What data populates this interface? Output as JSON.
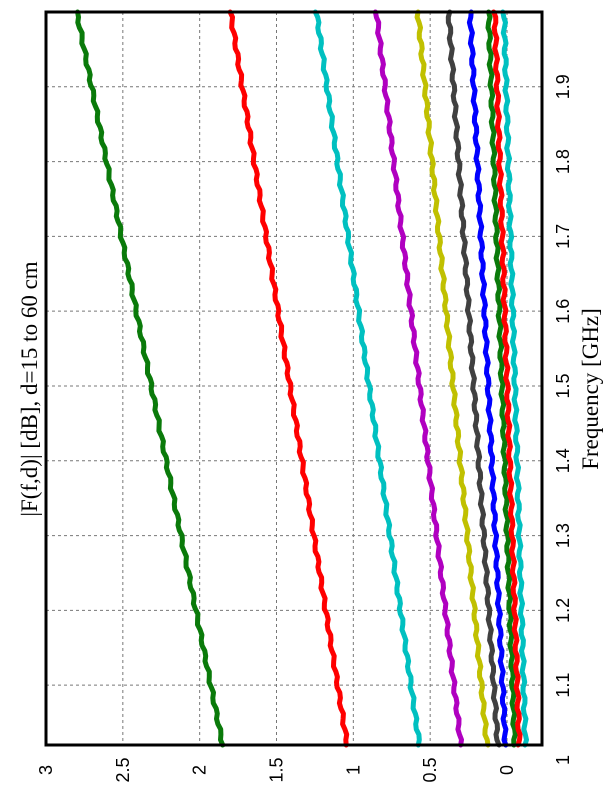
{
  "chart_data": {
    "type": "line",
    "title": "|F(f,d)| [dB], d=15 to 60 cm",
    "xlabel": "Frequency [GHz]",
    "ylabel": "",
    "xlim": [
      1.02,
      2.0
    ],
    "ylim": [
      -0.2,
      3.0
    ],
    "x_ticks": [
      1,
      1.1,
      1.2,
      1.3,
      1.4,
      1.5,
      1.6,
      1.7,
      1.8,
      1.9
    ],
    "x_tick_labels": [
      "1",
      "1.1",
      "1.2",
      "1.3",
      "1.4",
      "1.5",
      "1.6",
      "1.7",
      "1.8",
      "1.9"
    ],
    "y_ticks": [
      0,
      0.5,
      1,
      1.5,
      2,
      2.5,
      3
    ],
    "y_tick_labels": [
      "0",
      "0.5",
      "1",
      "1.5",
      "2",
      "2.5",
      "3"
    ],
    "grid": true,
    "orientation": "rotated 90° counter-clockwise",
    "x": [
      1.02,
      2.0
    ],
    "series": [
      {
        "color": "#0a7a0a",
        "values": [
          1.85,
          2.8
        ]
      },
      {
        "color": "#ff0000",
        "values": [
          1.04,
          1.8
        ]
      },
      {
        "color": "#00c0c0",
        "values": [
          0.57,
          1.24
        ]
      },
      {
        "color": "#b000c0",
        "values": [
          0.3,
          0.85
        ]
      },
      {
        "color": "#c0c000",
        "values": [
          0.13,
          0.58
        ]
      },
      {
        "color": "#404040",
        "values": [
          0.06,
          0.38
        ]
      },
      {
        "color": "#0000ff",
        "values": [
          0.01,
          0.24
        ]
      },
      {
        "color": "#0a7a0a",
        "values": [
          -0.05,
          0.12
        ]
      },
      {
        "color": "#ff0000",
        "values": [
          -0.08,
          0.08
        ]
      },
      {
        "color": "#00c0c0",
        "values": [
          -0.12,
          0.02
        ]
      }
    ]
  }
}
